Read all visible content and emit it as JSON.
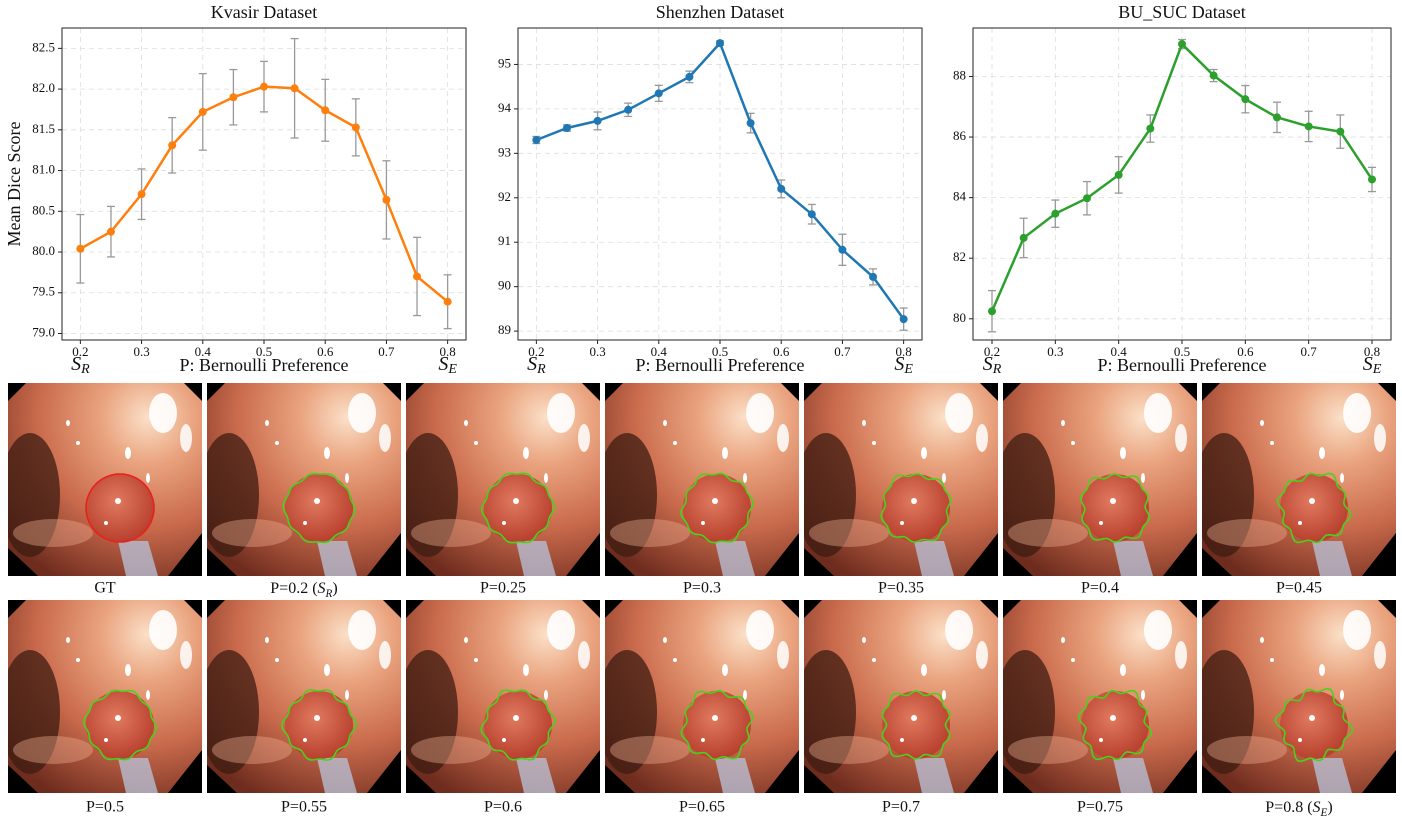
{
  "chart_data": [
    {
      "type": "line",
      "title": "Kvasir Dataset",
      "ylabel": "Mean Dice Score",
      "xlabel": "P: Bernoulli Preference",
      "range_labels": [
        {
          "main": "S",
          "sub": "R"
        },
        {
          "main": "S",
          "sub": "E"
        }
      ],
      "x": [
        0.2,
        0.25,
        0.3,
        0.35,
        0.4,
        0.45,
        0.5,
        0.55,
        0.6,
        0.65,
        0.7,
        0.75,
        0.8
      ],
      "series": [
        {
          "color": "#ff7f0e",
          "values": [
            80.04,
            80.25,
            80.71,
            81.31,
            81.72,
            81.9,
            82.03,
            82.01,
            81.74,
            81.53,
            80.64,
            79.7,
            79.39
          ],
          "errors": [
            0.42,
            0.31,
            0.31,
            0.34,
            0.47,
            0.34,
            0.31,
            0.61,
            0.38,
            0.35,
            0.48,
            0.48,
            0.33
          ]
        }
      ],
      "xlim": [
        0.17,
        0.83
      ],
      "xticks": [
        0.2,
        0.3,
        0.4,
        0.5,
        0.6,
        0.7,
        0.8
      ],
      "ylim": [
        78.92,
        82.75
      ],
      "yticks": [
        {
          "value": 79,
          "label": "79.0"
        },
        79.5,
        {
          "value": 80,
          "label": "80.0"
        },
        80.5,
        {
          "value": 81,
          "label": "81.0"
        },
        81.5,
        {
          "value": 82,
          "label": "82.0"
        },
        82.5
      ],
      "grid": true
    },
    {
      "type": "line",
      "title": "Shenzhen Dataset",
      "xlabel": "P: Bernoulli Preference",
      "range_labels": [
        {
          "main": "S",
          "sub": "R"
        },
        {
          "main": "S",
          "sub": "E"
        }
      ],
      "x": [
        0.2,
        0.25,
        0.3,
        0.35,
        0.4,
        0.45,
        0.5,
        0.55,
        0.6,
        0.65,
        0.7,
        0.75,
        0.8
      ],
      "series": [
        {
          "color": "#1f77b4",
          "values": [
            93.3,
            93.57,
            93.73,
            93.98,
            94.35,
            94.72,
            95.48,
            93.68,
            92.2,
            91.63,
            90.83,
            90.22,
            89.27
          ],
          "errors": [
            0.08,
            0.07,
            0.2,
            0.15,
            0.18,
            0.13,
            0.05,
            0.22,
            0.2,
            0.22,
            0.35,
            0.18,
            0.25
          ]
        }
      ],
      "xlim": [
        0.17,
        0.83
      ],
      "xticks": [
        0.2,
        0.3,
        0.4,
        0.5,
        0.6,
        0.7,
        0.8
      ],
      "ylim": [
        88.8,
        95.82
      ],
      "yticks": [
        89,
        90,
        91,
        92,
        93,
        94,
        95
      ],
      "grid": true
    },
    {
      "type": "line",
      "title": "BU_SUC Dataset",
      "xlabel": "P: Bernoulli Preference",
      "range_labels": [
        {
          "main": "S",
          "sub": "R"
        },
        {
          "main": "S",
          "sub": "E"
        }
      ],
      "x": [
        0.2,
        0.25,
        0.3,
        0.35,
        0.4,
        0.45,
        0.5,
        0.55,
        0.6,
        0.65,
        0.7,
        0.75,
        0.8
      ],
      "series": [
        {
          "color": "#2ca02c",
          "values": [
            80.25,
            82.67,
            83.47,
            83.98,
            84.75,
            86.28,
            89.07,
            88.03,
            87.25,
            86.65,
            86.35,
            86.18,
            84.6
          ],
          "errors": [
            0.68,
            0.65,
            0.45,
            0.55,
            0.6,
            0.45,
            0.15,
            0.2,
            0.45,
            0.5,
            0.5,
            0.55,
            0.4
          ]
        }
      ],
      "xlim": [
        0.17,
        0.83
      ],
      "xticks": [
        0.2,
        0.3,
        0.4,
        0.5,
        0.6,
        0.7,
        0.8
      ],
      "ylim": [
        79.3,
        89.6
      ],
      "yticks": [
        80,
        82,
        84,
        86,
        88
      ],
      "grid": true
    }
  ],
  "panels": [
    {
      "caption": "GT"
    },
    {
      "caption": {
        "before": "P=0.2 (",
        "main": "S",
        "sub": "R",
        "after": ")"
      }
    },
    {
      "caption": "P=0.25"
    },
    {
      "caption": "P=0.3"
    },
    {
      "caption": "P=0.35"
    },
    {
      "caption": "P=0.4"
    },
    {
      "caption": "P=0.45"
    },
    {
      "caption": "P=0.5"
    },
    {
      "caption": "P=0.55"
    },
    {
      "caption": "P=0.6"
    },
    {
      "caption": "P=0.65"
    },
    {
      "caption": "P=0.7"
    },
    {
      "caption": "P=0.75"
    },
    {
      "caption": {
        "before": "P=0.8 (",
        "main": "S",
        "sub": "E",
        "after": ")"
      }
    }
  ]
}
